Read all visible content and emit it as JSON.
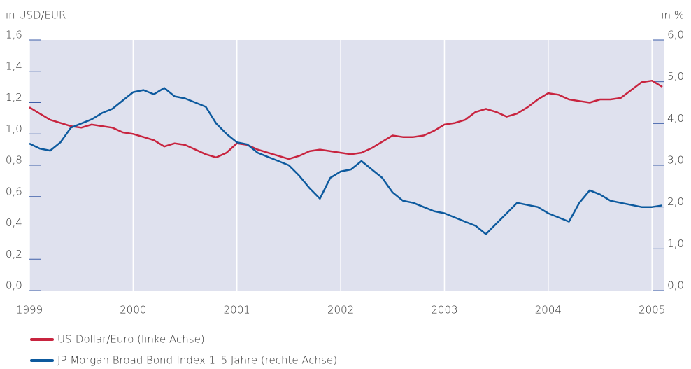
{
  "chart_data": {
    "type": "line",
    "ylabel": "in USD/EUR",
    "y2label": "in %",
    "x": [
      1999.0,
      1999.1,
      1999.2,
      1999.3,
      1999.4,
      1999.5,
      1999.6,
      1999.7,
      1999.8,
      1999.9,
      2000.0,
      2000.1,
      2000.2,
      2000.3,
      2000.4,
      2000.5,
      2000.6,
      2000.7,
      2000.8,
      2000.9,
      2001.0,
      2001.1,
      2001.2,
      2001.3,
      2001.4,
      2001.5,
      2001.6,
      2001.7,
      2001.8,
      2001.9,
      2002.0,
      2002.1,
      2002.2,
      2002.3,
      2002.4,
      2002.5,
      2002.6,
      2002.7,
      2002.8,
      2002.9,
      2003.0,
      2003.1,
      2003.2,
      2003.3,
      2003.4,
      2003.5,
      2003.6,
      2003.7,
      2003.8,
      2003.9,
      2004.0,
      2004.1,
      2004.2,
      2004.3,
      2004.4,
      2004.5,
      2004.6,
      2004.7,
      2004.8,
      2004.9,
      2005.0,
      2005.1
    ],
    "series": [
      {
        "name": "US-Dollar/Euro (linke Achse)",
        "color": "#c8243f",
        "axis": "y",
        "values": [
          1.17,
          1.13,
          1.09,
          1.07,
          1.05,
          1.04,
          1.06,
          1.05,
          1.04,
          1.01,
          1.0,
          0.98,
          0.96,
          0.92,
          0.94,
          0.93,
          0.9,
          0.87,
          0.85,
          0.88,
          0.94,
          0.93,
          0.9,
          0.88,
          0.86,
          0.84,
          0.86,
          0.89,
          0.9,
          0.89,
          0.88,
          0.87,
          0.88,
          0.91,
          0.95,
          0.99,
          0.98,
          0.98,
          0.99,
          1.02,
          1.06,
          1.07,
          1.09,
          1.14,
          1.16,
          1.14,
          1.11,
          1.13,
          1.17,
          1.22,
          1.26,
          1.25,
          1.22,
          1.21,
          1.2,
          1.22,
          1.22,
          1.23,
          1.28,
          1.33,
          1.34,
          1.3
        ]
      },
      {
        "name": "JP Morgan Broad Bond-Index 1–5 Jahre (rechte Achse)",
        "color": "#0d5a9e",
        "axis": "y2",
        "values": [
          3.52,
          3.4,
          3.35,
          3.55,
          3.9,
          4.0,
          4.1,
          4.25,
          4.35,
          4.55,
          4.75,
          4.8,
          4.7,
          4.85,
          4.65,
          4.6,
          4.5,
          4.4,
          4.0,
          3.75,
          3.55,
          3.5,
          3.3,
          3.2,
          3.1,
          3.0,
          2.75,
          2.45,
          2.2,
          2.7,
          2.85,
          2.9,
          3.1,
          2.9,
          2.7,
          2.35,
          2.15,
          2.1,
          2.0,
          1.9,
          1.85,
          1.75,
          1.65,
          1.55,
          1.35,
          1.6,
          1.85,
          2.1,
          2.05,
          2.0,
          1.85,
          1.75,
          1.65,
          2.1,
          2.4,
          2.3,
          2.15,
          2.1,
          2.05,
          2.0,
          2.0,
          2.04
        ]
      }
    ],
    "xlim": [
      1999,
      2005.12
    ],
    "xticks": [
      1999,
      2000,
      2001,
      2002,
      2003,
      2004,
      2005
    ],
    "ylim": [
      0,
      1.6
    ],
    "yticks": [
      {
        "value": 0,
        "label": "0,0"
      },
      {
        "value": 0.2,
        "label": "0,2"
      },
      {
        "value": 0.4,
        "label": "0,4"
      },
      {
        "value": 0.6,
        "label": "0,6"
      },
      {
        "value": 0.8,
        "label": "0,8"
      },
      {
        "value": 1.0,
        "label": "1,0"
      },
      {
        "value": 1.2,
        "label": "1,2"
      },
      {
        "value": 1.4,
        "label": "1,4"
      },
      {
        "value": 1.6,
        "label": "1,6"
      }
    ],
    "y2lim": [
      0,
      6
    ],
    "y2ticks": [
      {
        "value": 0,
        "label": "0,0"
      },
      {
        "value": 1,
        "label": "1,0"
      },
      {
        "value": 2,
        "label": "2,0"
      },
      {
        "value": 3,
        "label": "3,0"
      },
      {
        "value": 4,
        "label": "4,0"
      },
      {
        "value": 5,
        "label": "5,0"
      },
      {
        "value": 6,
        "label": "6,0"
      }
    ],
    "background": "#dfe1ee",
    "grid": true
  }
}
